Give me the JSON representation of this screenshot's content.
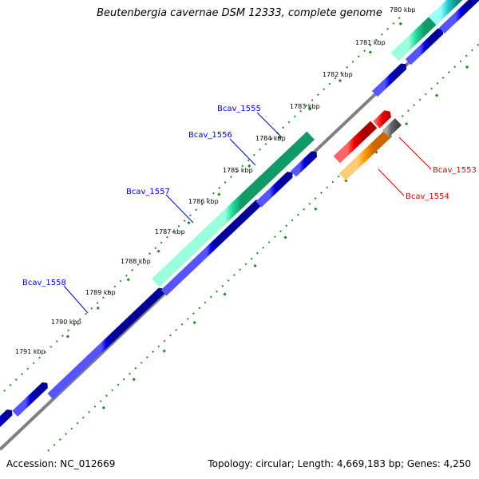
{
  "title": "Beutenbergia cavernae DSM 12333, complete genome",
  "footer": {
    "accession": "Accession: NC_012669",
    "topology": "Topology: circular; Length: 4,669,183 bp; Genes: 4,250"
  },
  "colors": {
    "background": "#ffffff",
    "backbone": "#808080",
    "tick": "#228B22",
    "forward_label": "#0000cc",
    "reverse_label": "#cc0000",
    "cds_blue": "#0000dd",
    "cds_green": "#22dd99",
    "cds_red": "#ee0000",
    "cds_orange": "#ff9900",
    "cds_grey": "#666666",
    "cds_cyan": "#22cccc"
  },
  "ticks": [
    {
      "label": "780 kbp"
    },
    {
      "label": "1781 kbp"
    },
    {
      "label": "1782 kbp"
    },
    {
      "label": "1783 kbp"
    },
    {
      "label": "1784 kbp"
    },
    {
      "label": "1785 kbp"
    },
    {
      "label": "1786 kbp"
    },
    {
      "label": "1787 kbp"
    },
    {
      "label": "1788 kbp"
    },
    {
      "label": "1789 kbp"
    },
    {
      "label": "1790 kbp"
    },
    {
      "label": "1791 kbp"
    }
  ],
  "gene_labels": [
    {
      "label": "Bcav_1555",
      "strand": "forward"
    },
    {
      "label": "Bcav_1556",
      "strand": "forward"
    },
    {
      "label": "Bcav_1557",
      "strand": "forward"
    },
    {
      "label": "Bcav_1558",
      "strand": "forward"
    },
    {
      "label": "Bcav_1553",
      "strand": "reverse"
    },
    {
      "label": "Bcav_1554",
      "strand": "reverse"
    }
  ]
}
